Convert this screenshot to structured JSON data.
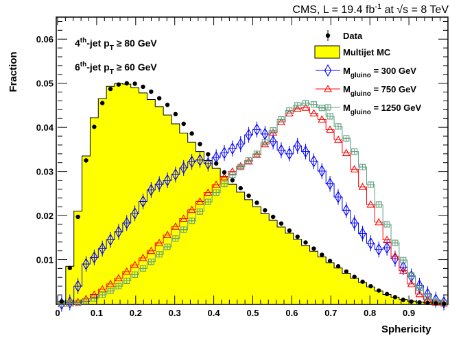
{
  "header": {
    "experiment": "CMS, L = 19.4 fb",
    "lumi_exp": "-1",
    "energy_mid": " at ",
    "sqrt_s": "s",
    "energy_val": " = 8 TeV"
  },
  "cuts": {
    "cut1": {
      "prefix": "4",
      "sup": "th",
      "mid": "-jet p",
      "sub": "T",
      "rel": " ≥ 80 GeV"
    },
    "cut2": {
      "prefix": "6",
      "sup": "th",
      "mid": "-jet p",
      "sub": "T",
      "rel": " ≥ 60 GeV"
    }
  },
  "colors": {
    "mc_fill": "#ffff00",
    "m300": "#0000ff",
    "m750": "#ff0000",
    "m1250": "#5f9f7f",
    "data": "#000000"
  },
  "chart_data": {
    "type": "line",
    "xlabel": "Sphericity",
    "ylabel": "Fraction",
    "xlim": [
      0,
      1
    ],
    "ylim": [
      0,
      0.065
    ],
    "x_ticks": [
      "0",
      "0.1",
      "0.2",
      "0.3",
      "0.4",
      "0.5",
      "0.6",
      "0.7",
      "0.8",
      "0.9"
    ],
    "y_ticks": [
      "0.01",
      "0.02",
      "0.03",
      "0.04",
      "0.05",
      "0.06"
    ],
    "bin_width": 0.0208,
    "bin_centers": [
      0.0104,
      0.0313,
      0.0521,
      0.0729,
      0.0938,
      0.1146,
      0.1354,
      0.1563,
      0.1771,
      0.1979,
      0.2188,
      0.2396,
      0.2604,
      0.2813,
      0.3021,
      0.3229,
      0.3438,
      0.3646,
      0.3854,
      0.4063,
      0.4271,
      0.4479,
      0.4688,
      0.4896,
      0.5104,
      0.5313,
      0.5521,
      0.5729,
      0.5938,
      0.6146,
      0.6354,
      0.6563,
      0.6771,
      0.6979,
      0.7188,
      0.7396,
      0.7604,
      0.7813,
      0.8021,
      0.8229,
      0.8438,
      0.8646,
      0.8854,
      0.9063,
      0.9271,
      0.9479,
      0.9688,
      0.9896
    ],
    "series": [
      {
        "name": "Data",
        "style": "points",
        "values": [
          0.0005,
          0.0081,
          0.0197,
          0.0325,
          0.0401,
          0.0455,
          0.0487,
          0.0497,
          0.05,
          0.0499,
          0.0492,
          0.0481,
          0.0466,
          0.0451,
          0.043,
          0.0408,
          0.0386,
          0.0362,
          0.0339,
          0.0318,
          0.0298,
          0.028,
          0.0262,
          0.0245,
          0.0229,
          0.0212,
          0.0197,
          0.0182,
          0.0166,
          0.0152,
          0.0139,
          0.0125,
          0.0111,
          0.0097,
          0.0085,
          0.0073,
          0.0061,
          0.005,
          0.004,
          0.003,
          0.0022,
          0.0015,
          0.0009,
          0.0005,
          0.0003,
          0.0002,
          0.0001,
          0.0
        ]
      },
      {
        "name": "Multijet MC",
        "style": "filled",
        "values": [
          0.0005,
          0.0085,
          0.021,
          0.0335,
          0.0422,
          0.0465,
          0.0493,
          0.05,
          0.0498,
          0.049,
          0.0478,
          0.0463,
          0.0447,
          0.0428,
          0.0408,
          0.0387,
          0.0366,
          0.0345,
          0.0325,
          0.0307,
          0.0289,
          0.0271,
          0.0253,
          0.0236,
          0.022,
          0.0204,
          0.0189,
          0.0174,
          0.016,
          0.0146,
          0.0132,
          0.0119,
          0.0106,
          0.0093,
          0.0081,
          0.0069,
          0.0058,
          0.0048,
          0.0038,
          0.0029,
          0.0021,
          0.0015,
          0.001,
          0.0006,
          0.0004,
          0.0002,
          0.0001,
          0.0
        ]
      },
      {
        "name": "M_gluino = 300 GeV",
        "style": "markers-diamond",
        "values": [
          0.0,
          0.0003,
          0.004,
          0.009,
          0.0105,
          0.0125,
          0.0145,
          0.0163,
          0.0183,
          0.0205,
          0.0232,
          0.0258,
          0.0271,
          0.028,
          0.0293,
          0.0308,
          0.0322,
          0.0326,
          0.0318,
          0.0332,
          0.0342,
          0.0352,
          0.0362,
          0.0383,
          0.0395,
          0.0385,
          0.0368,
          0.0348,
          0.034,
          0.0358,
          0.0345,
          0.0323,
          0.0301,
          0.0272,
          0.0242,
          0.0212,
          0.0183,
          0.0159,
          0.0137,
          0.0123,
          0.0127,
          0.0102,
          0.0083,
          0.0062,
          0.0041,
          0.0022,
          0.0009,
          0.0003
        ]
      },
      {
        "name": "M_gluino = 750 GeV",
        "style": "markers-triangle",
        "values": [
          0.0,
          0.0001,
          0.0004,
          0.0011,
          0.0021,
          0.0033,
          0.0045,
          0.0058,
          0.0073,
          0.0088,
          0.0104,
          0.012,
          0.0138,
          0.0156,
          0.0175,
          0.0193,
          0.0213,
          0.0232,
          0.0252,
          0.027,
          0.0287,
          0.03,
          0.0312,
          0.0323,
          0.0338,
          0.0362,
          0.0388,
          0.0412,
          0.0432,
          0.0442,
          0.0445,
          0.0432,
          0.0418,
          0.0395,
          0.0372,
          0.0342,
          0.0305,
          0.0265,
          0.0225,
          0.0185,
          0.0145,
          0.0108,
          0.0075,
          0.0045,
          0.0022,
          0.0009,
          0.0003,
          0.0001
        ]
      },
      {
        "name": "M_gluino = 1250 GeV",
        "style": "markers-square",
        "values": [
          0.0,
          0.0001,
          0.0002,
          0.0006,
          0.0012,
          0.002,
          0.0029,
          0.004,
          0.0052,
          0.0066,
          0.008,
          0.0095,
          0.0112,
          0.0129,
          0.0148,
          0.0168,
          0.0188,
          0.0209,
          0.0231,
          0.0252,
          0.0272,
          0.0292,
          0.031,
          0.0325,
          0.034,
          0.0366,
          0.0393,
          0.0418,
          0.0438,
          0.045,
          0.0455,
          0.0452,
          0.0444,
          0.0425,
          0.0402,
          0.0375,
          0.0345,
          0.031,
          0.027,
          0.0225,
          0.018,
          0.0138,
          0.0099,
          0.0064,
          0.0036,
          0.0017,
          0.0006,
          0.0002
        ]
      }
    ],
    "legend": {
      "position": "top-right",
      "entries": [
        {
          "label": "Data",
          "label_main": "Data",
          "label_sub": "",
          "label_tail": ""
        },
        {
          "label": "Multijet MC",
          "label_main": "Multijet MC",
          "label_sub": "",
          "label_tail": ""
        },
        {
          "label": "M_gluino = 300 GeV",
          "label_main": "M",
          "label_sub": "gluino",
          "label_tail": " = 300 GeV"
        },
        {
          "label": "M_gluino = 750 GeV",
          "label_main": "M",
          "label_sub": "gluino",
          "label_tail": " = 750 GeV"
        },
        {
          "label": "M_gluino = 1250 GeV",
          "label_main": "M",
          "label_sub": "gluino",
          "label_tail": " = 1250 GeV"
        }
      ]
    }
  }
}
